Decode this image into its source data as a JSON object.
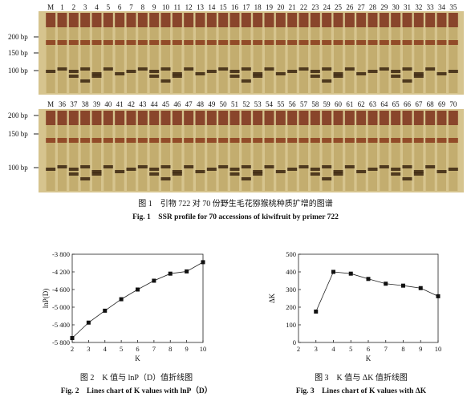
{
  "gel": {
    "ladder_labels": [
      "200 bp",
      "150 bp",
      "100 bp"
    ],
    "top_lanes": [
      "M",
      "1",
      "2",
      "3",
      "4",
      "5",
      "6",
      "7",
      "8",
      "9",
      "10",
      "11",
      "12",
      "13",
      "14",
      "15",
      "16",
      "17",
      "18",
      "19",
      "20",
      "21",
      "22",
      "23",
      "24",
      "25",
      "26",
      "27",
      "28",
      "29",
      "30",
      "31",
      "32",
      "33",
      "34",
      "35"
    ],
    "bottom_lanes": [
      "M",
      "36",
      "37",
      "38",
      "39",
      "40",
      "41",
      "42",
      "43",
      "44",
      "45",
      "46",
      "47",
      "48",
      "49",
      "50",
      "51",
      "52",
      "53",
      "54",
      "55",
      "56",
      "57",
      "58",
      "59",
      "60",
      "61",
      "62",
      "63",
      "64",
      "65",
      "66",
      "67",
      "68",
      "69",
      "70"
    ]
  },
  "fig1": {
    "caption_cn": "图 1　引物 722 对 70 份野生毛花猕猴桃种质扩增的图谱",
    "caption_en": "Fig. 1　SSR profile for 70 accessions of kiwifruit by primer 722"
  },
  "fig2": {
    "caption_cn": "图 2　K 值与 lnP（D）值折线图",
    "caption_en": "Fig. 2　Lines chart of K values with lnP（D）"
  },
  "fig3": {
    "caption_cn": "图 3　K 值与 ΔK 值折线图",
    "caption_en": "Fig. 3　Lines chart of K values with ΔK"
  },
  "chart_data": [
    {
      "type": "line",
      "xlabel": "K",
      "ylabel": "lnP(D)",
      "x": [
        2,
        3,
        4,
        5,
        6,
        7,
        8,
        9,
        10
      ],
      "values": [
        -5700,
        -5350,
        -5080,
        -4820,
        -4600,
        -4400,
        -4240,
        -4190,
        -3980
      ],
      "xticks": [
        "2",
        "3",
        "4",
        "5",
        "6",
        "7",
        "8",
        "9",
        "10"
      ],
      "yticks": [
        "-3 800",
        "-4 200",
        "-4 600",
        "-5 000",
        "-5 400",
        "-5 800"
      ],
      "xlim": [
        2,
        10
      ],
      "ylim": [
        -5800,
        -3800
      ]
    },
    {
      "type": "line",
      "xlabel": "K",
      "ylabel": "ΔK",
      "x": [
        3,
        4,
        5,
        6,
        7,
        8,
        9,
        10
      ],
      "values": [
        175,
        400,
        390,
        360,
        333,
        322,
        308,
        262
      ],
      "xticks": [
        "2",
        "3",
        "4",
        "5",
        "6",
        "7",
        "8",
        "9",
        "10"
      ],
      "yticks": [
        "0",
        "100",
        "200",
        "300",
        "400",
        "500"
      ],
      "xlim": [
        2,
        10
      ],
      "ylim": [
        0,
        500
      ]
    }
  ]
}
